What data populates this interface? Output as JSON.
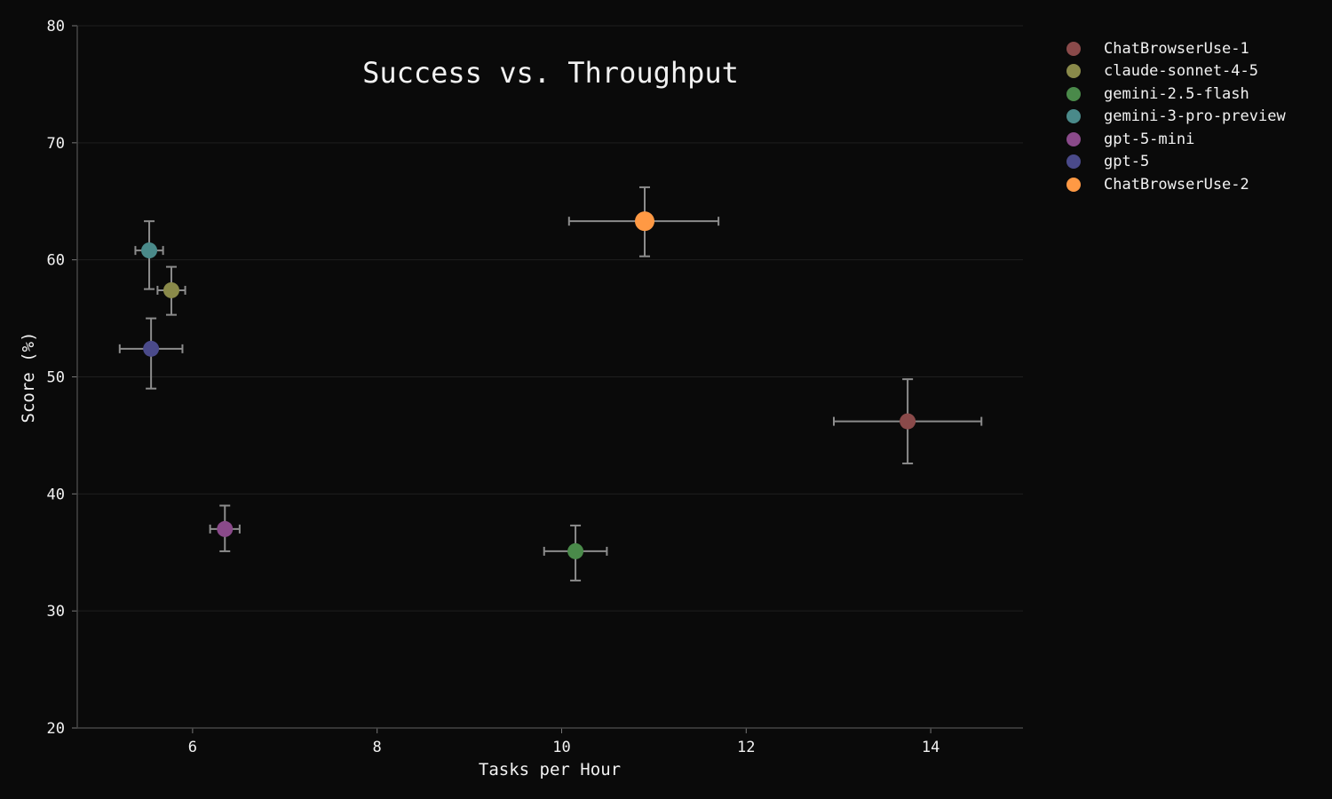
{
  "chart_data": {
    "type": "scatter",
    "title": "Success vs. Throughput",
    "xlabel": "Tasks per Hour",
    "ylabel": "Score (%)",
    "xlim": [
      4.75,
      15.0
    ],
    "ylim": [
      20,
      80
    ],
    "xticks": [
      "6",
      "8",
      "10",
      "12",
      "14"
    ],
    "yticks": [
      "20",
      "30",
      "40",
      "50",
      "60",
      "70",
      "80"
    ],
    "grid": "horizontal",
    "legend_position": "outside-right-top",
    "series": [
      {
        "name": "ChatBrowserUse-1",
        "x": 13.75,
        "y": 46.2,
        "xerr": [
          12.95,
          14.55
        ],
        "yerr": [
          42.6,
          49.8
        ],
        "color": "#8a4a4a"
      },
      {
        "name": "claude-sonnet-4-5",
        "x": 5.77,
        "y": 57.4,
        "xerr": [
          5.62,
          5.92
        ],
        "yerr": [
          55.3,
          59.4
        ],
        "color": "#8a8a4a"
      },
      {
        "name": "gemini-2.5-flash",
        "x": 10.15,
        "y": 35.1,
        "xerr": [
          9.81,
          10.49
        ],
        "yerr": [
          32.6,
          37.3
        ],
        "color": "#4a8a4a"
      },
      {
        "name": "gemini-3-pro-preview",
        "x": 5.53,
        "y": 60.8,
        "xerr": [
          5.38,
          5.68
        ],
        "yerr": [
          57.5,
          63.3
        ],
        "color": "#4a8a8a"
      },
      {
        "name": "gpt-5-mini",
        "x": 6.35,
        "y": 37.0,
        "xerr": [
          6.19,
          6.51
        ],
        "yerr": [
          35.1,
          39.0
        ],
        "color": "#8a4a8a"
      },
      {
        "name": "gpt-5",
        "x": 5.55,
        "y": 52.4,
        "xerr": [
          5.21,
          5.89
        ],
        "yerr": [
          49.0,
          55.0
        ],
        "color": "#4a4a8a"
      },
      {
        "name": "ChatBrowserUse-2",
        "x": 10.9,
        "y": 63.3,
        "xerr": [
          10.08,
          11.7
        ],
        "yerr": [
          60.3,
          66.2
        ],
        "color": "#ff9944"
      }
    ]
  }
}
